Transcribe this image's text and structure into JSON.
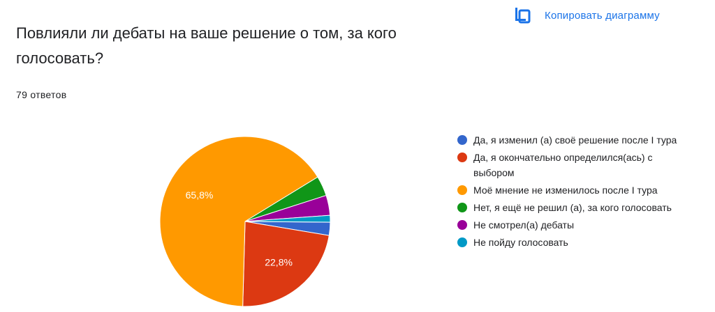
{
  "header": {
    "copy_label": "Копировать диаграмму",
    "copy_icon": "copy-icon"
  },
  "question": {
    "title": "Повлияли ли дебаты на ваше решение о том, за кого голосовать?",
    "responses": "79 ответов"
  },
  "chart_data": {
    "type": "pie",
    "slices": [
      {
        "label": "Да, я изменил (а) своё решение после I тура",
        "value": 2.5,
        "color": "#3366cc",
        "display": ""
      },
      {
        "label": "Да, я окончательно определился(ась) с выбором",
        "value": 22.8,
        "color": "#dc3912",
        "display": "22,8%"
      },
      {
        "label": "Моё мнение не изменилось после I тура",
        "value": 65.8,
        "color": "#ff9900",
        "display": "65,8%"
      },
      {
        "label": "Нет, я ещё не решил (а), за кого голосовать",
        "value": 3.8,
        "color": "#109618",
        "display": ""
      },
      {
        "label": "Не смотрел(а) дебаты",
        "value": 3.8,
        "color": "#990099",
        "display": ""
      },
      {
        "label": "Не пойду голосовать",
        "value": 1.3,
        "color": "#0099c6",
        "display": ""
      }
    ],
    "legend_position": "right"
  }
}
